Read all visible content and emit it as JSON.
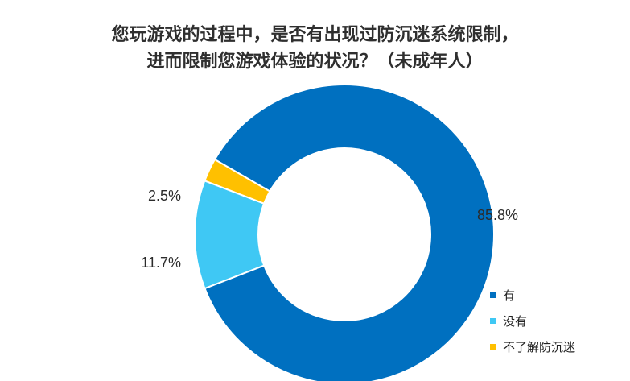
{
  "chart_data": {
    "type": "pie",
    "title_line1": "您玩游戏的过程中，是否有出现过防沉迷系统限制，",
    "title_line2": "进而限制您游戏体验的状况？（未成年人）",
    "categories": [
      "有",
      "没有",
      "不了解防沉迷"
    ],
    "values": [
      85.8,
      11.7,
      2.5
    ],
    "value_labels": [
      "85.8%",
      "11.7%",
      "2.5%"
    ],
    "colors": [
      "#0070C0",
      "#3FC8F4",
      "#FFC000"
    ],
    "donut": true,
    "legend_position": "bottom-right"
  }
}
